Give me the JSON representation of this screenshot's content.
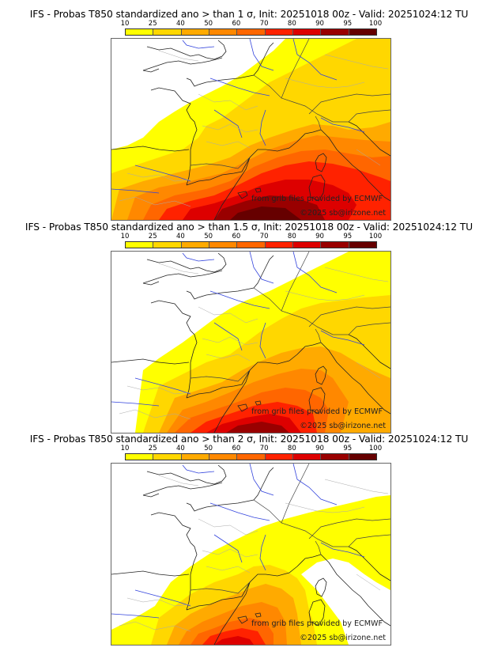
{
  "colorbar": {
    "ticks": [
      "10",
      "25",
      "40",
      "50",
      "60",
      "70",
      "80",
      "90",
      "95",
      "100"
    ],
    "colors": [
      "#ffff00",
      "#ffd700",
      "#ffaa00",
      "#ff8800",
      "#ff6600",
      "#ff2200",
      "#dd0000",
      "#990000",
      "#660000"
    ]
  },
  "panels": [
    {
      "title": "IFS - Probas T850  standardized ano > than 1 σ, Init: 20251018 00z - Valid: 20251024:12 TU",
      "credit_source": "from grib files provided by ECMWF",
      "credit_copyright": "©2025 sb@irizone.net"
    },
    {
      "title": "IFS - Probas T850  standardized ano > than 1.5 σ, Init: 20251018 00z - Valid: 20251024:12 TU",
      "credit_source": "from grib files provided by ECMWF",
      "credit_copyright": "©2025 sb@irizone.net"
    },
    {
      "title": "IFS - Probas T850  standardized ano > than 2 σ, Init: 20251018 00z - Valid: 20251024:12 TU",
      "credit_source": "from grib files provided by ECMWF",
      "credit_copyright": "©2025 sb@irizone.net"
    }
  ]
}
